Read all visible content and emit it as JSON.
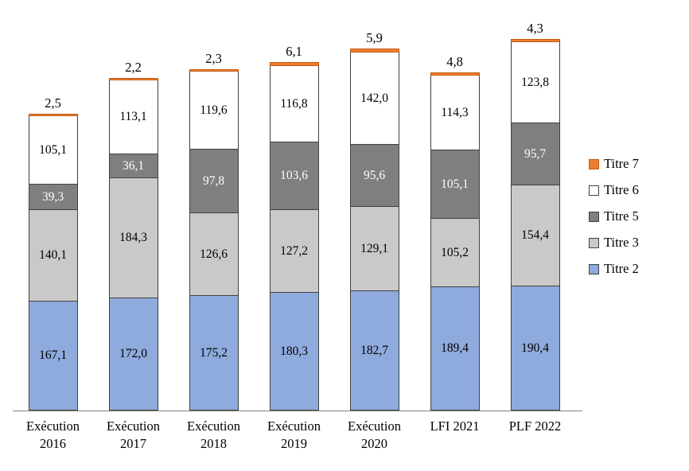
{
  "chart_data": {
    "type": "bar",
    "stacked": true,
    "title": "",
    "xlabel": "",
    "ylabel": "",
    "grid": false,
    "ylim": [
      0,
      600
    ],
    "background": "#FFFFFF",
    "axis_line_color": "#808080",
    "categories": [
      "Exécution 2016",
      "Exécution 2017",
      "Exécution 2018",
      "Exécution 2019",
      "Exécution 2020",
      "LFI 2021",
      "PLF 2022"
    ],
    "series": [
      {
        "name": "Titre 2",
        "color": "#8FAADC",
        "border": "#404040",
        "label_color": "#000000",
        "label_position": "inside",
        "values": [
          167.1,
          172.0,
          175.2,
          180.3,
          182.7,
          189.4,
          190.4
        ],
        "labels": [
          "167,1",
          "172,0",
          "175,2",
          "180,3",
          "182,7",
          "189,4",
          "190,4"
        ]
      },
      {
        "name": "Titre 3",
        "color": "#C9C9C9",
        "border": "#404040",
        "label_color": "#000000",
        "label_position": "inside",
        "values": [
          140.1,
          184.3,
          126.6,
          127.2,
          129.1,
          105.2,
          154.4
        ],
        "labels": [
          "140,1",
          "184,3",
          "126,6",
          "127,2",
          "129,1",
          "105,2",
          "154,4"
        ]
      },
      {
        "name": "Titre 5",
        "color": "#7F7F7F",
        "border": "#404040",
        "label_color": "#FFFFFF",
        "label_position": "inside",
        "values": [
          39.3,
          36.1,
          97.8,
          103.6,
          95.6,
          105.1,
          95.7
        ],
        "labels": [
          "39,3",
          "36,1",
          "97,8",
          "103,6",
          "95,6",
          "105,1",
          "95,7"
        ]
      },
      {
        "name": "Titre 6",
        "color": "#FFFFFF",
        "border": "#404040",
        "label_color": "#000000",
        "label_position": "inside",
        "values": [
          105.1,
          113.1,
          119.6,
          116.8,
          142.0,
          114.3,
          123.8
        ],
        "labels": [
          "105,1",
          "113,1",
          "119,6",
          "116,8",
          "142,0",
          "114,3",
          "123,8"
        ]
      },
      {
        "name": "Titre 7",
        "color": "#ED7D31",
        "border": "#C55A11",
        "label_color": "#000000",
        "label_position": "outside",
        "values": [
          2.5,
          2.2,
          2.3,
          6.1,
          5.9,
          4.8,
          4.3
        ],
        "labels": [
          "2,5",
          "2,2",
          "2,3",
          "6,1",
          "5,9",
          "4,8",
          "4,3"
        ]
      }
    ],
    "legend": {
      "position": "right",
      "items": [
        "Titre 7",
        "Titre 6",
        "Titre 5",
        "Titre 3",
        "Titre 2"
      ]
    }
  }
}
